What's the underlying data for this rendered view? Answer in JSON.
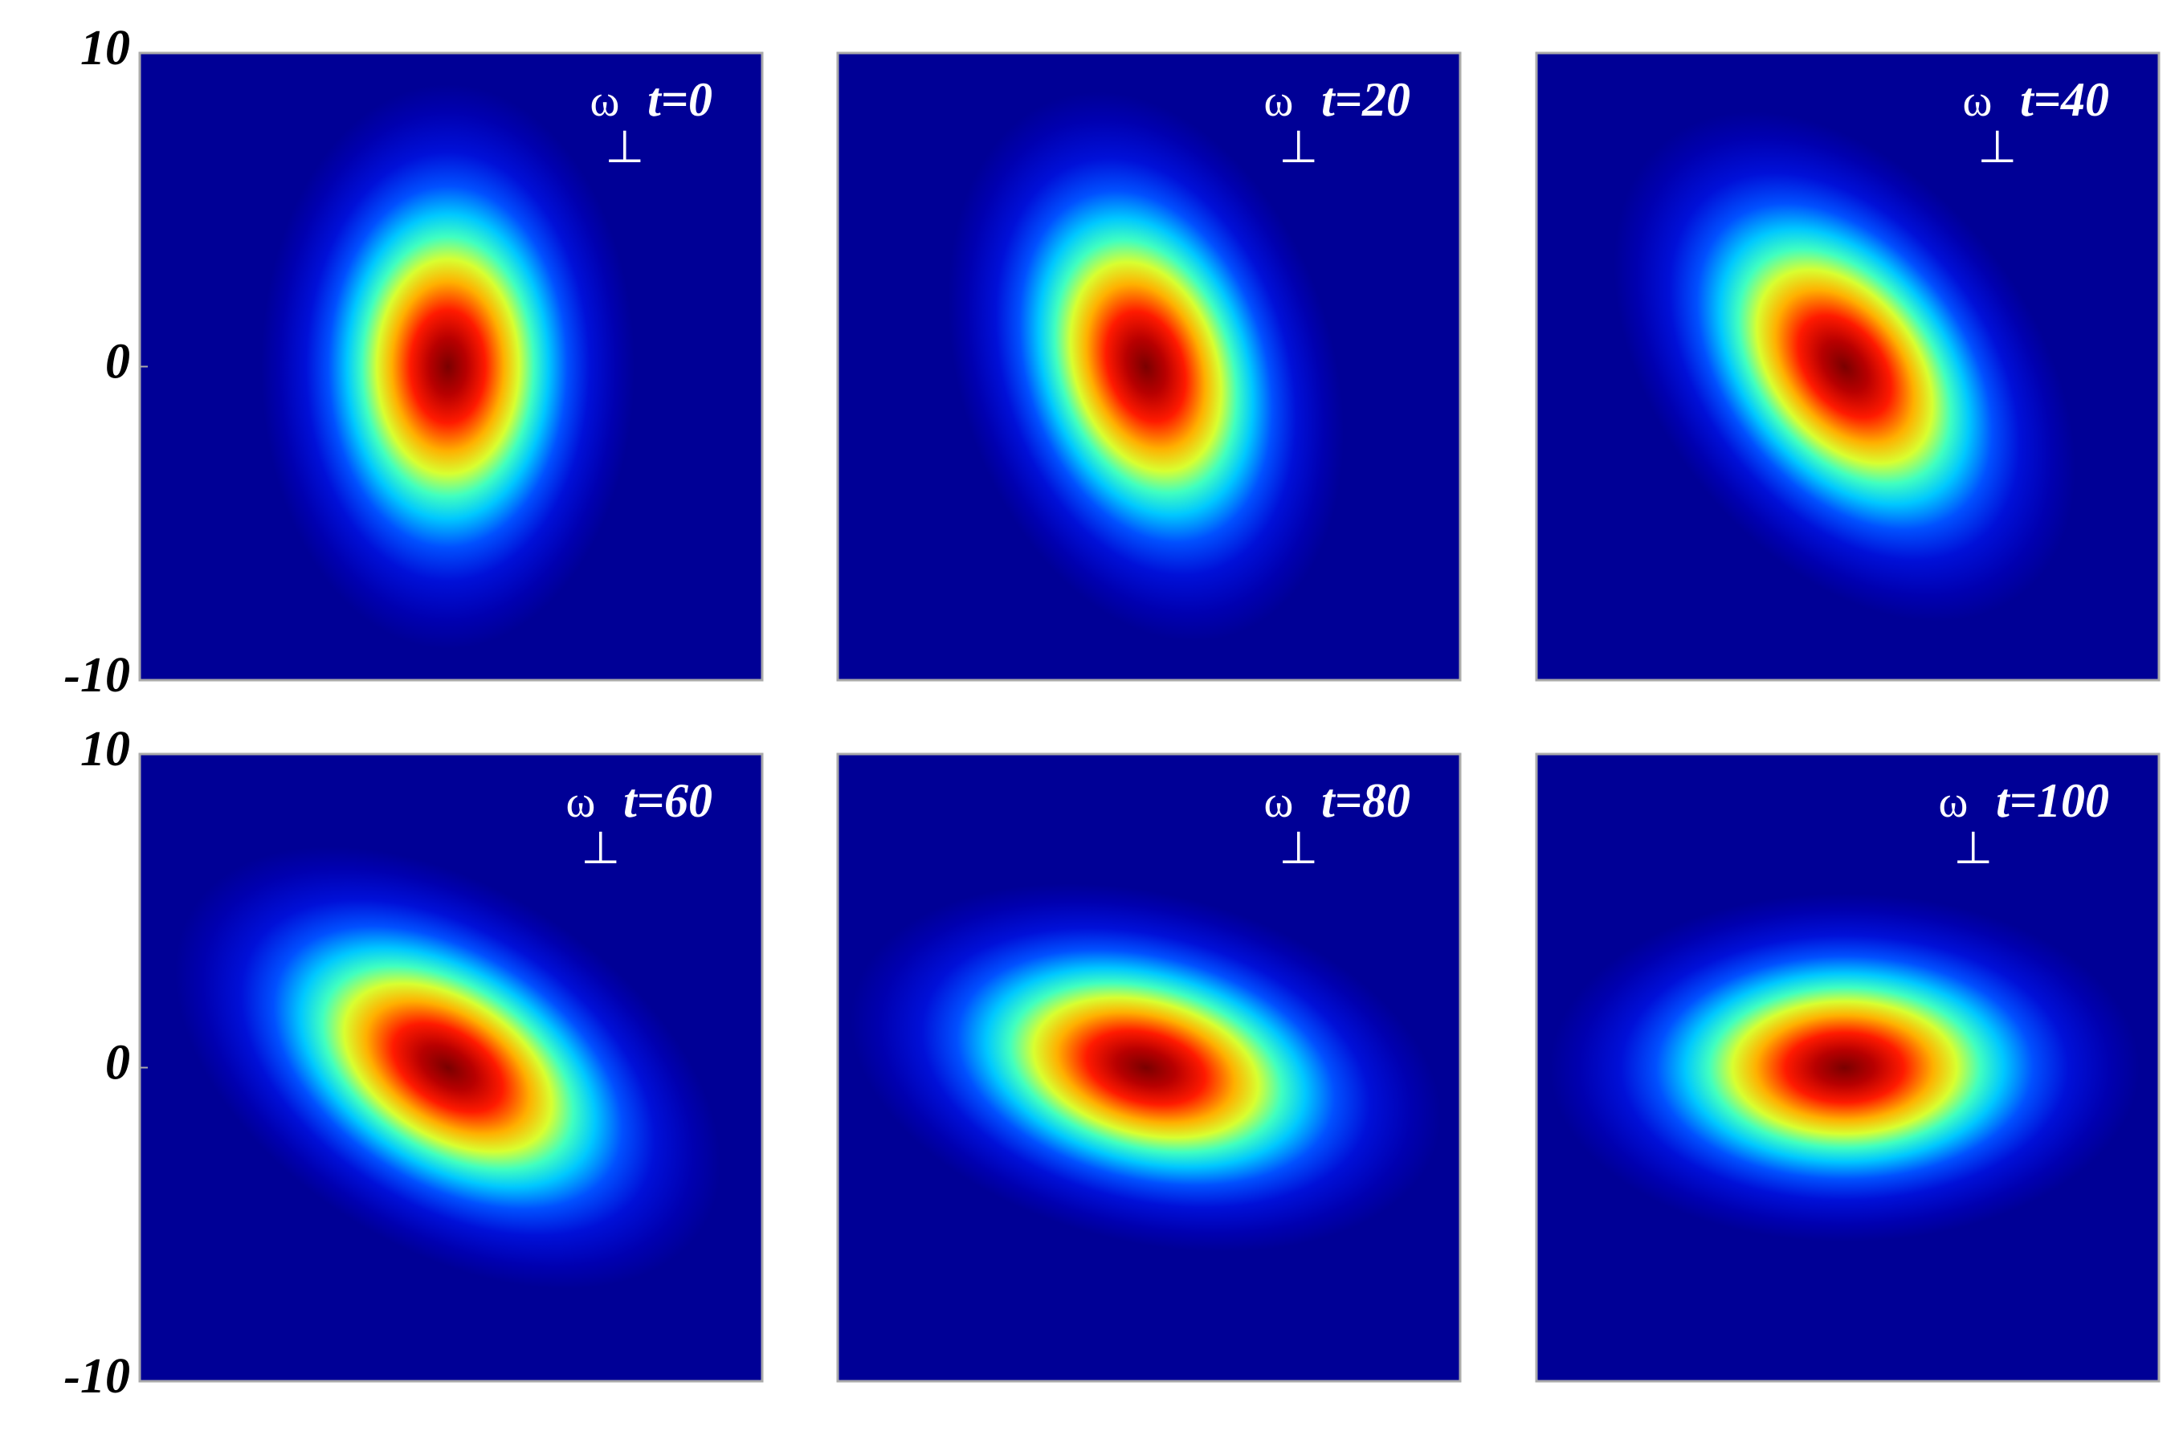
{
  "chart_data": [
    {
      "type": "heatmap",
      "label": {
        "symbol": "ω",
        "subscript": "⊥",
        "text": "t=0"
      },
      "ylim": [
        -10,
        10
      ],
      "yticks": [
        -10,
        0,
        10
      ]
    },
    {
      "type": "heatmap",
      "label": {
        "symbol": "ω",
        "subscript": "⊥",
        "text": "t=20"
      }
    },
    {
      "type": "heatmap",
      "label": {
        "symbol": "ω",
        "subscript": "⊥",
        "text": "t=40"
      }
    },
    {
      "type": "heatmap",
      "label": {
        "symbol": "ω",
        "subscript": "⊥",
        "text": "t=60"
      },
      "ylim": [
        -10,
        10
      ],
      "yticks": [
        -10,
        0,
        10
      ]
    },
    {
      "type": "heatmap",
      "label": {
        "symbol": "ω",
        "subscript": "⊥",
        "text": "t=80"
      }
    },
    {
      "type": "heatmap",
      "label": {
        "symbol": "ω",
        "subscript": "⊥",
        "text": "t=100"
      }
    }
  ]
}
